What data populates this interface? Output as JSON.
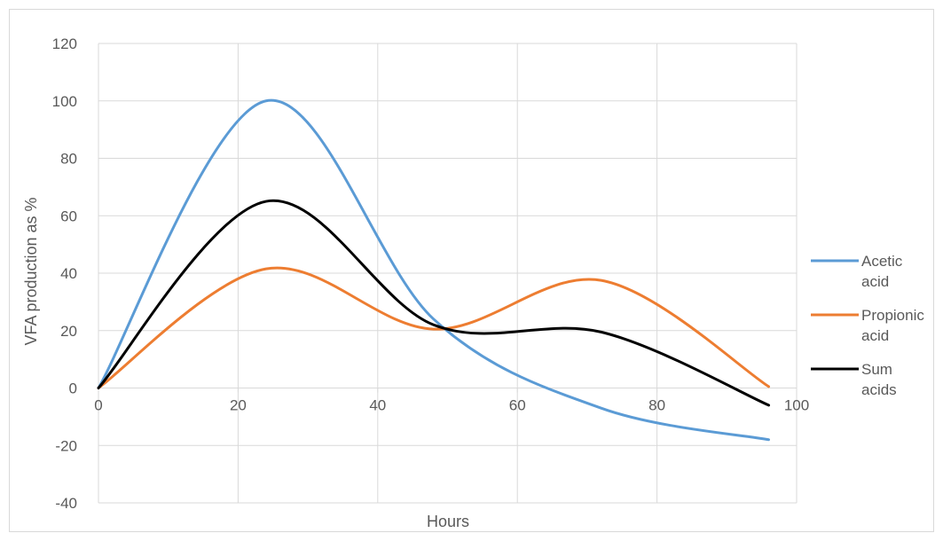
{
  "chart_data": {
    "type": "line",
    "title": "",
    "xlabel": "Hours",
    "ylabel": "VFA production as %",
    "xlim": [
      0,
      100
    ],
    "ylim": [
      -40,
      120
    ],
    "xticks": [
      0,
      20,
      40,
      60,
      80,
      100
    ],
    "yticks": [
      -40,
      -20,
      0,
      20,
      40,
      60,
      80,
      100,
      120
    ],
    "grid": true,
    "legend_position": "right",
    "series": [
      {
        "name": "Acetic acid",
        "legend_lines": [
          "Acetic",
          "acid"
        ],
        "color": "#5b9bd5",
        "x": [
          0,
          24,
          48,
          72,
          96
        ],
        "y": [
          0,
          100,
          24,
          -7,
          -18
        ]
      },
      {
        "name": "Propionic acid",
        "legend_lines": [
          "Propionic",
          "acid"
        ],
        "color": "#ed7d31",
        "x": [
          0,
          24,
          48,
          72,
          96
        ],
        "y": [
          0,
          41.5,
          20.5,
          37.5,
          0.5
        ]
      },
      {
        "name": "Sum acids",
        "legend_lines": [
          "Sum",
          "acids"
        ],
        "color": "#000000",
        "x": [
          0,
          24,
          48,
          72,
          96
        ],
        "y": [
          0,
          65,
          22,
          19.5,
          -6
        ]
      }
    ]
  }
}
